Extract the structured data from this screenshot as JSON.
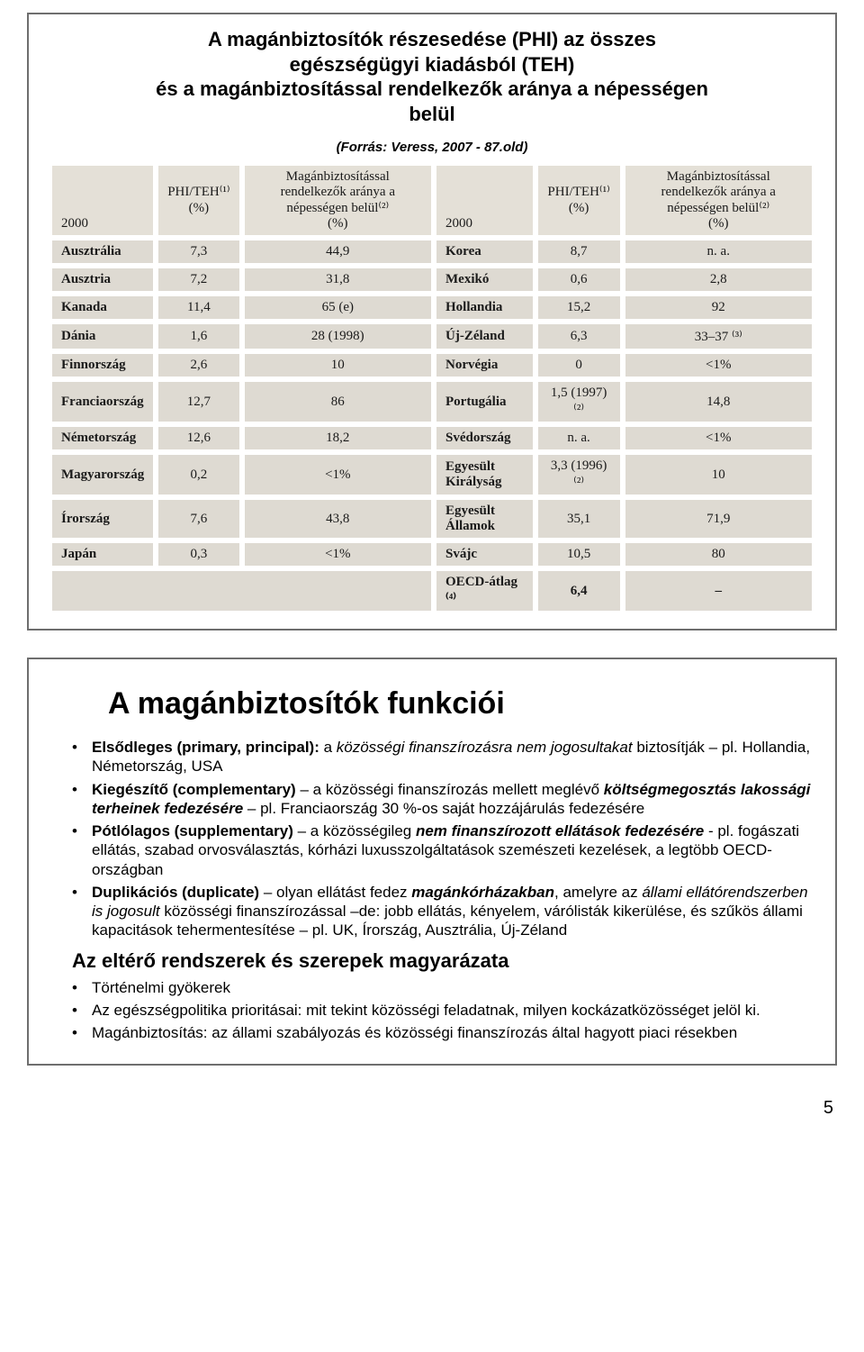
{
  "slide1": {
    "title_l1": "A magánbiztosítók részesedése (PHI) az összes",
    "title_l2": "egészségügyi kiadásból (TEH)",
    "title_l3": "és a magánbiztosítással rendelkezők aránya a népességen",
    "title_l4": "belül",
    "source_label": "(Forrás: Veress, 2007 - 87.old)",
    "table": {
      "head_year": "2000",
      "head_col_phi": "PHI/TEH⁽¹⁾\n(%)",
      "head_col_pop": "Magánbiztosítással rendelkezők aránya a népességen belül⁽²⁾\n(%)",
      "rows_left": [
        {
          "country": "Ausztrália",
          "phi": "7,3",
          "pop": "44,9"
        },
        {
          "country": "Ausztria",
          "phi": "7,2",
          "pop": "31,8"
        },
        {
          "country": "Kanada",
          "phi": "11,4",
          "pop": "65 (e)"
        },
        {
          "country": "Dánia",
          "phi": "1,6",
          "pop": "28 (1998)"
        },
        {
          "country": "Finnország",
          "phi": "2,6",
          "pop": "10"
        },
        {
          "country": "Franciaország",
          "phi": "12,7",
          "pop": "86"
        },
        {
          "country": "Németország",
          "phi": "12,6",
          "pop": "18,2"
        },
        {
          "country": "Magyarország",
          "phi": "0,2",
          "pop": "<1%"
        },
        {
          "country": "Írország",
          "phi": "7,6",
          "pop": "43,8"
        },
        {
          "country": "Japán",
          "phi": "0,3",
          "pop": "<1%"
        }
      ],
      "rows_right": [
        {
          "country": "Korea",
          "phi": "8,7",
          "pop": "n. a."
        },
        {
          "country": "Mexikó",
          "phi": "0,6",
          "pop": "2,8"
        },
        {
          "country": "Hollandia",
          "phi": "15,2",
          "pop": "92"
        },
        {
          "country": "Új-Zéland",
          "phi": "6,3",
          "pop": "33–37 ⁽³⁾"
        },
        {
          "country": "Norvégia",
          "phi": "0",
          "pop": "<1%"
        },
        {
          "country": "Portugália",
          "phi": "1,5 (1997)⁽²⁾",
          "pop": "14,8"
        },
        {
          "country": "Svédország",
          "phi": "n. a.",
          "pop": "<1%"
        },
        {
          "country": "Egyesült Királyság",
          "phi": "3,3 (1996)⁽²⁾",
          "pop": "10"
        },
        {
          "country": "Egyesült Államok",
          "phi": "35,1",
          "pop": "71,9"
        },
        {
          "country": "Svájc",
          "phi": "10,5",
          "pop": "80"
        }
      ],
      "footer_label": "OECD-átlag ⁽⁴⁾",
      "footer_val1": "6,4",
      "footer_val2": "–"
    },
    "style": {
      "scan_bg": "#dedad2",
      "cell_border": "#ffffff",
      "text_color": "#1a1a1a"
    }
  },
  "slide2": {
    "title": "A magánbiztosítók funkciói",
    "bullets": [
      {
        "html": "<span class='b'>Elsődleges (primary, principal):</span> a <span class='i'>közösségi finanszírozásra nem jogosultakat</span> biztosítják – pl. Hollandia, Németország, USA"
      },
      {
        "html": "<span class='b'>Kiegészítő (complementary)</span> – a közösségi finanszírozás mellett meglévő <span class='bi'>költségmegosztás lakossági terheinek fedezésére</span> – pl. Franciaország 30 %-os saját hozzájárulás fedezésére"
      },
      {
        "html": "<span class='b'>Pótlólagos (supplementary)</span> – a közösségileg <span class='bi'>nem finanszírozott ellátások fedezésére</span>  - pl. fogászati ellátás, szabad orvosválasztás, kórházi luxusszolgáltatások szemészeti kezelések, a legtöbb OECD-országban"
      },
      {
        "html": "<span class='b'>Duplikációs (duplicate)</span> – olyan ellátást fedez <span class='bi'>magánkórházakban</span>, amelyre az <span class='i'>állami ellátórendszerben is jogosult</span> közösségi finanszírozással –de: jobb ellátás, kényelem, várólisták kikerülése, és szűkös állami kapacitások tehermentesítése – pl. UK, Írország, Ausztrália, Új-Zéland"
      }
    ],
    "subhead": "Az eltérő rendszerek és szerepek magyarázata",
    "bullets2": [
      {
        "html": "Történelmi gyökerek"
      },
      {
        "html": "Az egészségpolitika prioritásai: mit tekint közösségi feladatnak, milyen kockázatközösséget jelöl ki."
      },
      {
        "html": "Magánbiztosítás: az állami szabályozás és közösségi finanszírozás által hagyott piaci résekben"
      }
    ]
  },
  "page_number": "5"
}
